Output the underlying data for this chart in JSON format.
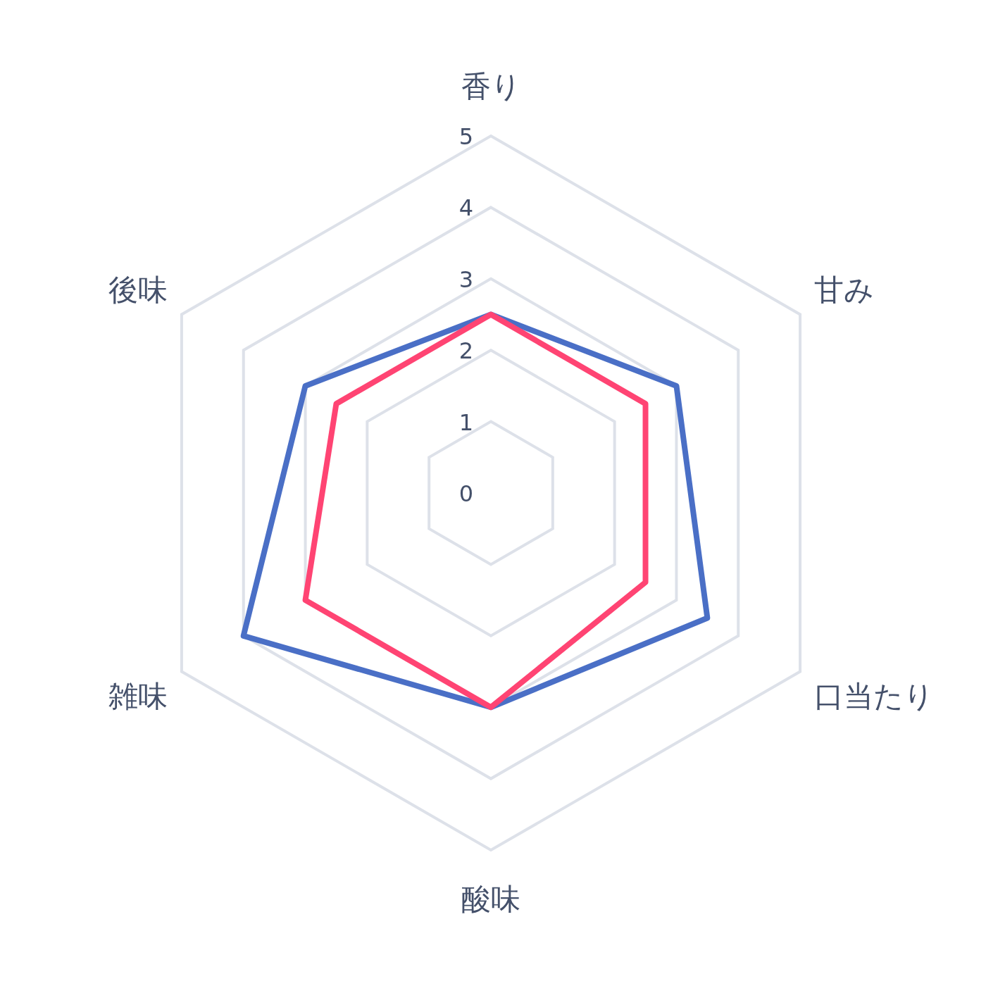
{
  "chart_data": {
    "type": "radar",
    "categories": [
      "香り",
      "甘み",
      "口当たり",
      "酸味",
      "雑味",
      "後味"
    ],
    "ylim": [
      0,
      5
    ],
    "yticks": [
      0,
      1,
      2,
      3,
      4,
      5
    ],
    "grid": true,
    "series": [
      {
        "color": "#4a6fc6",
        "values": [
          2.5,
          3.0,
          3.5,
          3.0,
          4.0,
          3.0
        ]
      },
      {
        "color": "#ff4473",
        "values": [
          2.5,
          2.5,
          2.5,
          3.0,
          3.0,
          2.5
        ]
      }
    ]
  }
}
